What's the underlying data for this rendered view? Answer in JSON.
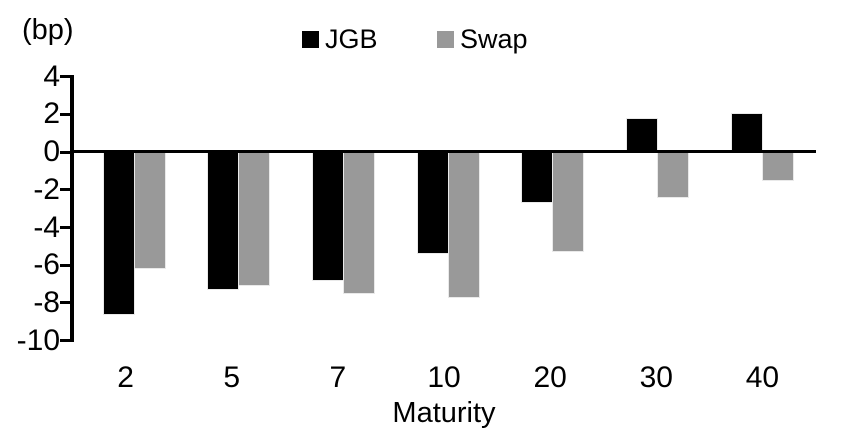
{
  "unit_label": "(bp)",
  "chart_data": {
    "type": "bar",
    "title": "",
    "xlabel": "Maturity",
    "ylabel": "(bp)",
    "categories": [
      "2",
      "5",
      "7",
      "10",
      "20",
      "30",
      "40"
    ],
    "series": [
      {
        "name": "JGB",
        "color": "#000000",
        "values": [
          -8.6,
          -7.3,
          -6.8,
          -5.4,
          -2.7,
          1.7,
          2.0
        ]
      },
      {
        "name": "Swap",
        "color": "#999999",
        "values": [
          -6.2,
          -7.1,
          -7.5,
          -7.7,
          -5.3,
          -2.4,
          -1.5
        ]
      }
    ],
    "yticks": [
      4,
      2,
      0,
      -2,
      -4,
      -6,
      -8,
      -10
    ],
    "ylim": [
      -10,
      4
    ],
    "grid": false,
    "legend_position": "top-center",
    "axis_color": "#000000"
  }
}
